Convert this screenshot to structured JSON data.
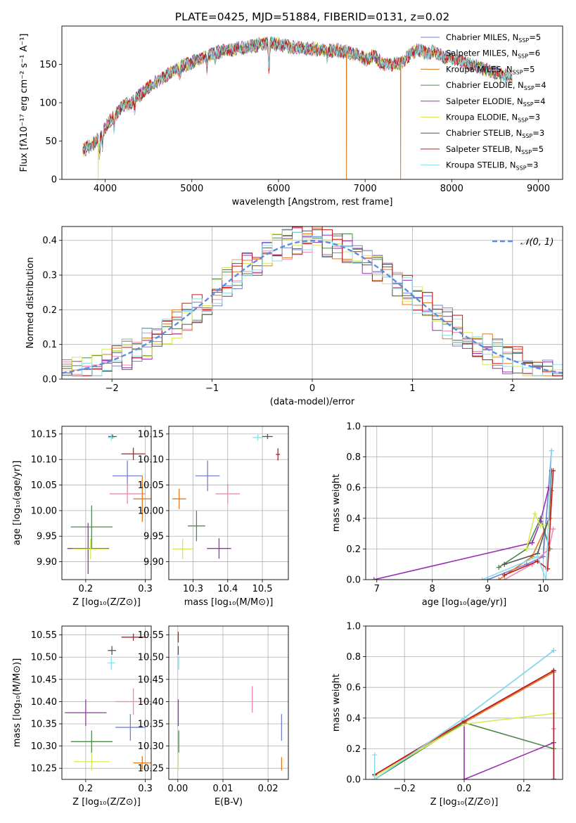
{
  "figure_title": "PLATE=0425, MJD=51884, FIBERID=0131, z=0.02",
  "colors": {
    "Chabrier MILES": "#7080d8",
    "Salpeter MILES": "#f088b0",
    "Kroupa MILES": "#e07a20",
    "Chabrier ELODIE": "#4e8a4e",
    "Salpeter ELODIE": "#9b30b0",
    "Kroupa ELODIE": "#d8e858",
    "Chabrier STELIB": "#555555",
    "Salpeter STELIB": "#c81818",
    "Kroupa STELIB": "#88dde8",
    "normal_curve": "#5b8ee0"
  },
  "chart_data": [
    {
      "id": "spectrum",
      "type": "line",
      "title": "PLATE=0425, MJD=51884, FIBERID=0131, z=0.02",
      "xlabel": "wavelength [Angstrom, rest frame]",
      "ylabel": "Flux [fλ10⁻¹⁷ erg cm⁻² s⁻¹ A⁻¹]",
      "xlim": [
        3500,
        9280
      ],
      "ylim": [
        0,
        200
      ],
      "xticks": [
        4000,
        5000,
        6000,
        7000,
        8000,
        9000
      ],
      "yticks": [
        0,
        50,
        100,
        150
      ],
      "grid": false,
      "legend_position": "top-right",
      "legend": [
        {
          "label": "Chabrier MILES, N",
          "sub": "SSP",
          "tail": "=5"
        },
        {
          "label": "Salpeter MILES, N",
          "sub": "SSP",
          "tail": "=6"
        },
        {
          "label": "Kroupa MILES, N",
          "sub": "SSP",
          "tail": "=5"
        },
        {
          "label": "Chabrier ELODIE, N",
          "sub": "SSP",
          "tail": "=4"
        },
        {
          "label": "Salpeter ELODIE, N",
          "sub": "SSP",
          "tail": "=4"
        },
        {
          "label": "Kroupa ELODIE, N",
          "sub": "SSP",
          "tail": "=3"
        },
        {
          "label": "Chabrier STELIB, N",
          "sub": "SSP",
          "tail": "=3"
        },
        {
          "label": "Salpeter STELIB, N",
          "sub": "SSP",
          "tail": "=5"
        },
        {
          "label": "Kroupa STELIB, N",
          "sub": "SSP",
          "tail": "=3"
        }
      ],
      "continuum": {
        "x": [
          3740,
          3800,
          3850,
          3900,
          3950,
          4000,
          4100,
          4200,
          4300,
          4400,
          4500,
          4600,
          4700,
          4800,
          4900,
          5000,
          5100,
          5200,
          5300,
          5400,
          5500,
          5600,
          5700,
          5800,
          5900,
          6000,
          6100,
          6200,
          6300,
          6400,
          6500,
          6600,
          6700,
          6800,
          6900,
          7000,
          7100,
          7200,
          7300,
          7400,
          7500,
          7600,
          7700,
          7800,
          7900,
          8000,
          8100,
          8200,
          8300,
          8400,
          8500,
          8600,
          8700
        ],
        "y": [
          38,
          42,
          45,
          50,
          58,
          68,
          82,
          95,
          100,
          110,
          120,
          128,
          135,
          142,
          148,
          152,
          158,
          162,
          166,
          168,
          170,
          172,
          174,
          176,
          178,
          176,
          174,
          172,
          171,
          170,
          169,
          168,
          168,
          166,
          164,
          156,
          162,
          150,
          150,
          152,
          160,
          170,
          165,
          166,
          160,
          158,
          155,
          150,
          147,
          142,
          140,
          136,
          132
        ]
      },
      "absorption_lines": [
        {
          "x": 3934,
          "depth": 25
        },
        {
          "x": 3969,
          "depth": 20
        },
        {
          "x": 4102,
          "depth": 15
        },
        {
          "x": 4340,
          "depth": 12
        },
        {
          "x": 4861,
          "depth": 10
        },
        {
          "x": 5175,
          "depth": 18
        },
        {
          "x": 5270,
          "depth": 8
        },
        {
          "x": 5890,
          "depth": 35
        },
        {
          "x": 6563,
          "depth": 10
        }
      ],
      "spikes": [
        {
          "x": 3920,
          "y": 0,
          "series": "Kroupa ELODIE"
        },
        {
          "x": 6785,
          "y": 0,
          "series": "Kroupa MILES"
        },
        {
          "x": 7410,
          "y": 0,
          "series": "Kroupa MILES"
        }
      ]
    },
    {
      "id": "residuals",
      "type": "histogram",
      "xlabel": "(data-model)/error",
      "ylabel": "Normed distribution",
      "xlim": [
        -2.5,
        2.5
      ],
      "ylim": [
        0,
        0.44
      ],
      "xticks": [
        -2,
        -1,
        0,
        1,
        2
      ],
      "yticks": [
        0.0,
        0.1,
        0.2,
        0.3,
        0.4
      ],
      "grid": true,
      "legend_position": "top-right",
      "normal_curve_label": "𝒩(0, 1)",
      "bin_width": 0.1,
      "bin_start": -2.5,
      "noise_amplitude": 0.045
    },
    {
      "id": "age_vs_Z",
      "type": "errorbar",
      "xlabel": "Z [log₁₀(Z/Z⊙)]",
      "ylabel": "age  [log₁₀(age/yr)]",
      "xlim": [
        0.16,
        0.31
      ],
      "ylim": [
        9.865,
        10.165
      ],
      "xticks": [
        0.2,
        0.3
      ],
      "yticks": [
        9.9,
        9.95,
        10.0,
        10.05,
        10.1,
        10.15
      ],
      "grid": true,
      "points": [
        {
          "series": "Chabrier MILES",
          "x": 0.27,
          "y": 10.068,
          "xerr": 0.025,
          "yerr": 0.03
        },
        {
          "series": "Salpeter MILES",
          "x": 0.27,
          "y": 10.033,
          "xerr": 0.03,
          "yerr": 0.02
        },
        {
          "series": "Kroupa MILES",
          "x": 0.295,
          "y": 10.023,
          "xerr": 0.015,
          "yerr": 0.045
        },
        {
          "series": "Chabrier ELODIE",
          "x": 0.21,
          "y": 9.968,
          "xerr": 0.035,
          "yerr": 0.042
        },
        {
          "series": "Salpeter ELODIE",
          "x": 0.204,
          "y": 9.926,
          "xerr": 0.035,
          "yerr": 0.05
        },
        {
          "series": "Kroupa ELODIE",
          "x": 0.208,
          "y": 9.925,
          "xerr": 0.03,
          "yerr": 0.02
        },
        {
          "series": "Chabrier STELIB",
          "x": 0.245,
          "y": 10.145,
          "xerr": 0.007,
          "yerr": 0.004
        },
        {
          "series": "Salpeter STELIB",
          "x": 0.28,
          "y": 10.111,
          "xerr": 0.02,
          "yerr": 0.012
        },
        {
          "series": "Kroupa STELIB",
          "x": 0.243,
          "y": 10.143,
          "xerr": 0.006,
          "yerr": 0.006
        }
      ]
    },
    {
      "id": "age_vs_mass",
      "type": "errorbar",
      "xlabel": "mass [log₁₀(M/M⊙)]",
      "ylabel": "",
      "xlim": [
        10.23,
        10.575
      ],
      "ylim": [
        9.865,
        10.165
      ],
      "xticks": [
        10.3,
        10.4,
        10.5
      ],
      "yticks": [
        9.9,
        9.95,
        10.0,
        10.05,
        10.1,
        10.15
      ],
      "grid": true,
      "points": [
        {
          "series": "Chabrier MILES",
          "x": 10.342,
          "y": 10.068,
          "xerr": 0.035,
          "yerr": 0.03
        },
        {
          "series": "Salpeter MILES",
          "x": 10.4,
          "y": 10.033,
          "xerr": 0.035,
          "yerr": 0.02
        },
        {
          "series": "Kroupa MILES",
          "x": 10.26,
          "y": 10.023,
          "xerr": 0.02,
          "yerr": 0.02
        },
        {
          "series": "Chabrier ELODIE",
          "x": 10.31,
          "y": 9.97,
          "xerr": 0.025,
          "yerr": 0.03
        },
        {
          "series": "Salpeter ELODIE",
          "x": 10.375,
          "y": 9.926,
          "xerr": 0.035,
          "yerr": 0.02
        },
        {
          "series": "Kroupa ELODIE",
          "x": 10.27,
          "y": 9.925,
          "xerr": 0.03,
          "yerr": 0.02
        },
        {
          "series": "Chabrier STELIB",
          "x": 10.515,
          "y": 10.145,
          "xerr": 0.015,
          "yerr": 0.005
        },
        {
          "series": "Salpeter STELIB",
          "x": 10.545,
          "y": 10.11,
          "xerr": 0.006,
          "yerr": 0.012
        },
        {
          "series": "Kroupa STELIB",
          "x": 10.487,
          "y": 10.143,
          "xerr": 0.015,
          "yerr": 0.006
        }
      ]
    },
    {
      "id": "mass_vs_Z",
      "type": "errorbar",
      "xlabel": "Z [log₁₀(Z/Z⊙)]",
      "ylabel": "mass [log₁₀(M/M⊙)]",
      "xlim": [
        0.16,
        0.31
      ],
      "ylim": [
        10.225,
        10.57
      ],
      "xticks": [
        0.2,
        0.3
      ],
      "yticks": [
        10.25,
        10.3,
        10.35,
        10.4,
        10.45,
        10.5,
        10.55
      ],
      "grid": true,
      "points": [
        {
          "series": "Chabrier MILES",
          "x": 0.275,
          "y": 10.342,
          "xerr": 0.025,
          "yerr": 0.03
        },
        {
          "series": "Salpeter MILES",
          "x": 0.28,
          "y": 10.4,
          "xerr": 0.03,
          "yerr": 0.03
        },
        {
          "series": "Kroupa MILES",
          "x": 0.295,
          "y": 10.262,
          "xerr": 0.015,
          "yerr": 0.015
        },
        {
          "series": "Chabrier ELODIE",
          "x": 0.21,
          "y": 10.31,
          "xerr": 0.035,
          "yerr": 0.025
        },
        {
          "series": "Salpeter ELODIE",
          "x": 0.2,
          "y": 10.375,
          "xerr": 0.035,
          "yerr": 0.03
        },
        {
          "series": "Kroupa ELODIE",
          "x": 0.21,
          "y": 10.265,
          "xerr": 0.03,
          "yerr": 0.02
        },
        {
          "series": "Chabrier STELIB",
          "x": 0.244,
          "y": 10.515,
          "xerr": 0.007,
          "yerr": 0.01
        },
        {
          "series": "Salpeter STELIB",
          "x": 0.28,
          "y": 10.545,
          "xerr": 0.02,
          "yerr": 0.008
        },
        {
          "series": "Kroupa STELIB",
          "x": 0.243,
          "y": 10.487,
          "xerr": 0.006,
          "yerr": 0.015
        }
      ]
    },
    {
      "id": "mass_vs_ebv",
      "type": "errorbar",
      "xlabel": "E(B-V)",
      "ylabel": "",
      "xlim": [
        -0.002,
        0.0245
      ],
      "ylim": [
        10.225,
        10.57
      ],
      "xticks": [
        0.0,
        0.01,
        0.02
      ],
      "yticks": [
        10.25,
        10.3,
        10.35,
        10.4,
        10.45,
        10.5,
        10.55
      ],
      "grid": true,
      "points": [
        {
          "series": "Chabrier MILES",
          "x": 0.023,
          "y": 10.342,
          "xerr": 0,
          "yerr": 0.03
        },
        {
          "series": "Salpeter MILES",
          "x": 0.0165,
          "y": 10.405,
          "xerr": 0,
          "yerr": 0.03
        },
        {
          "series": "Kroupa MILES",
          "x": 0.023,
          "y": 10.26,
          "xerr": 0,
          "yerr": 0.015
        },
        {
          "series": "Chabrier ELODIE",
          "x": 0.0002,
          "y": 10.31,
          "xerr": 0,
          "yerr": 0.025
        },
        {
          "series": "Salpeter ELODIE",
          "x": 0.0001,
          "y": 10.375,
          "xerr": 0,
          "yerr": 0.03
        },
        {
          "series": "Kroupa ELODIE",
          "x": 0.0001,
          "y": 10.265,
          "xerr": 0,
          "yerr": 0.02
        },
        {
          "series": "Chabrier STELIB",
          "x": 0.0001,
          "y": 10.515,
          "xerr": 0,
          "yerr": 0.01
        },
        {
          "series": "Salpeter STELIB",
          "x": 0.0001,
          "y": 10.545,
          "xerr": 0,
          "yerr": 0.012
        },
        {
          "series": "Kroupa STELIB",
          "x": 0.0002,
          "y": 10.487,
          "xerr": 0,
          "yerr": 0.015
        }
      ]
    },
    {
      "id": "weight_vs_age",
      "type": "line",
      "xlabel": "age  [log₁₀(age/yr)]",
      "ylabel": "mass weight",
      "xlim": [
        6.8,
        10.35
      ],
      "ylim": [
        0,
        1.0
      ],
      "xticks": [
        7,
        8,
        9,
        10
      ],
      "yticks": [
        0.0,
        0.2,
        0.4,
        0.6,
        0.8,
        1.0
      ],
      "grid": true,
      "series": [
        {
          "name": "Chabrier MILES",
          "x": [
            9.0,
            9.7,
            10.0,
            10.15
          ],
          "y": [
            0.0,
            0.1,
            0.15,
            0.84
          ]
        },
        {
          "name": "Salpeter MILES",
          "x": [
            9.3,
            9.8,
            10.1,
            10.18
          ],
          "y": [
            0.0,
            0.1,
            0.2,
            0.33
          ]
        },
        {
          "name": "Kroupa MILES",
          "x": [
            9.2,
            9.8,
            10.12,
            10.15
          ],
          "y": [
            0.0,
            0.15,
            0.4,
            0.58
          ]
        },
        {
          "name": "Chabrier ELODIE",
          "x": [
            9.2,
            9.7,
            9.95,
            10.12
          ],
          "y": [
            0.08,
            0.2,
            0.4,
            0.2
          ]
        },
        {
          "name": "Salpeter ELODIE",
          "x": [
            6.95,
            9.8,
            9.95,
            10.1
          ],
          "y": [
            0.0,
            0.24,
            0.38,
            0.6
          ]
        },
        {
          "name": "Kroupa ELODIE",
          "x": [
            9.7,
            9.85,
            9.95,
            10.1
          ],
          "y": [
            0.2,
            0.43,
            0.35,
            0.36
          ]
        },
        {
          "name": "Chabrier STELIB",
          "x": [
            9.3,
            9.9,
            10.1,
            10.15
          ],
          "y": [
            0.1,
            0.17,
            0.4,
            0.71
          ]
        },
        {
          "name": "Salpeter STELIB",
          "x": [
            9.3,
            9.9,
            10.08,
            10.18
          ],
          "y": [
            0.03,
            0.12,
            0.07,
            0.71
          ]
        },
        {
          "name": "Kroupa STELIB",
          "x": [
            8.9,
            9.9,
            10.05,
            10.15
          ],
          "y": [
            0.0,
            0.15,
            0.0,
            0.84
          ]
        }
      ]
    },
    {
      "id": "weight_vs_Z",
      "type": "line",
      "xlabel": "Z [log₁₀(Z/Z⊙)]",
      "ylabel": "mass weight",
      "xlim": [
        -0.33,
        0.33
      ],
      "ylim": [
        0,
        1.0
      ],
      "xticks": [
        -0.2,
        0.0,
        0.2
      ],
      "yticks": [
        0.0,
        0.2,
        0.4,
        0.6,
        0.8,
        1.0
      ],
      "grid": true,
      "series": [
        {
          "name": "Chabrier MILES",
          "x": [
            -0.3,
            0.0,
            0.3
          ],
          "y": [
            0.0,
            0.4,
            0.84
          ]
        },
        {
          "name": "Salpeter MILES",
          "x": [
            -0.3,
            0.0,
            0.3,
            0.3
          ],
          "y": [
            0.03,
            0.38,
            0.7,
            0.33
          ]
        },
        {
          "name": "Kroupa MILES",
          "x": [
            -0.3,
            0.0,
            0.3,
            0.3
          ],
          "y": [
            0.03,
            0.37,
            0.7,
            0.0
          ]
        },
        {
          "name": "Chabrier ELODIE",
          "x": [
            -0.3,
            0.0,
            0.3
          ],
          "y": [
            0.0,
            0.37,
            0.2
          ]
        },
        {
          "name": "Salpeter ELODIE",
          "x": [
            0.0,
            0.0,
            0.3,
            0.3
          ],
          "y": [
            0.36,
            0.0,
            0.24,
            0.0
          ]
        },
        {
          "name": "Kroupa ELODIE",
          "x": [
            -0.3,
            0.0,
            0.3
          ],
          "y": [
            0.02,
            0.36,
            0.43
          ]
        },
        {
          "name": "Chabrier STELIB",
          "x": [
            -0.3,
            0.0,
            0.3,
            0.3
          ],
          "y": [
            0.03,
            0.38,
            0.71,
            0.0
          ]
        },
        {
          "name": "Salpeter STELIB",
          "x": [
            -0.3,
            0.0,
            0.3,
            0.3
          ],
          "y": [
            0.03,
            0.38,
            0.71,
            0.0
          ]
        },
        {
          "name": "Kroupa STELIB",
          "x": [
            -0.3,
            -0.3,
            0.0,
            0.3
          ],
          "y": [
            0.16,
            0.0,
            0.4,
            0.84
          ]
        }
      ]
    }
  ]
}
